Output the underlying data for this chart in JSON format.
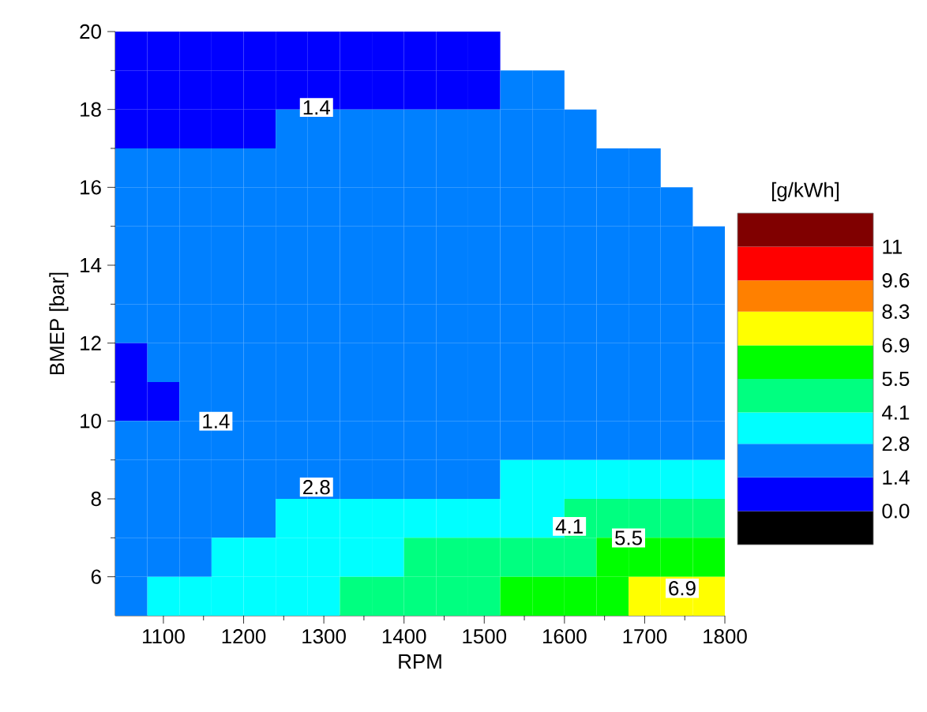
{
  "chart_data": {
    "type": "heatmap",
    "xlabel": "RPM",
    "ylabel": "BMEP [bar]",
    "clabel": "[g/kWh]",
    "x": [
      1060,
      1100,
      1140,
      1180,
      1220,
      1260,
      1300,
      1340,
      1380,
      1420,
      1460,
      1500,
      1540,
      1580,
      1620,
      1660,
      1700,
      1740,
      1780
    ],
    "y": [
      19.5,
      18.5,
      17.5,
      16.5,
      15.5,
      14.5,
      13.5,
      12.5,
      11.5,
      10.5,
      9.5,
      8.5,
      7.5,
      6.5,
      5.5
    ],
    "xlim": [
      1040,
      1800
    ],
    "ylim": [
      5,
      20
    ],
    "xticks": [
      1100,
      1200,
      1300,
      1400,
      1500,
      1600,
      1700,
      1800
    ],
    "yticks": [
      6,
      8,
      10,
      12,
      14,
      16,
      18,
      20
    ],
    "clim": [
      -1.4,
      12.4
    ],
    "cticks": [
      {
        "value": 0,
        "label": "0.0"
      },
      1.4,
      2.8,
      4.1,
      5.5,
      6.9,
      8.3,
      9.6,
      11
    ],
    "colors": [
      "#000000",
      "#0000ff",
      "#0080ff",
      "#00ffff",
      "#00ff80",
      "#00ff00",
      "#ffff00",
      "#ff8000",
      "#ff0000",
      "#800000"
    ],
    "cells": [
      [
        1.0,
        1.0,
        1.0,
        1.0,
        1.0,
        1.0,
        1.0,
        1.0,
        1.0,
        1.0,
        1.0,
        1.0,
        null,
        null,
        null,
        null,
        null,
        null,
        null
      ],
      [
        1.0,
        1.0,
        1.0,
        1.0,
        1.0,
        1.0,
        1.0,
        1.0,
        1.0,
        1.0,
        1.0,
        1.0,
        2.1,
        2.1,
        null,
        null,
        null,
        null,
        null
      ],
      [
        1.0,
        1.0,
        1.0,
        1.0,
        1.0,
        2.1,
        2.1,
        2.1,
        2.1,
        2.1,
        2.1,
        2.1,
        2.1,
        2.1,
        2.1,
        null,
        null,
        null,
        null
      ],
      [
        2.1,
        2.1,
        2.1,
        2.1,
        2.1,
        2.1,
        2.1,
        2.1,
        2.1,
        2.1,
        2.1,
        2.1,
        2.1,
        2.1,
        2.1,
        2.1,
        2.1,
        null,
        null
      ],
      [
        2.1,
        2.1,
        2.1,
        2.1,
        2.1,
        2.1,
        2.1,
        2.1,
        2.1,
        2.1,
        2.1,
        2.1,
        2.1,
        2.1,
        2.1,
        2.1,
        2.1,
        2.1,
        null
      ],
      [
        2.1,
        2.1,
        2.1,
        2.1,
        2.1,
        2.1,
        2.1,
        2.1,
        2.1,
        2.1,
        2.1,
        2.1,
        2.1,
        2.1,
        2.1,
        2.1,
        2.1,
        2.1,
        2.1
      ],
      [
        2.1,
        2.1,
        2.1,
        2.1,
        2.1,
        2.1,
        2.1,
        2.1,
        2.1,
        2.1,
        2.1,
        2.1,
        2.1,
        2.1,
        2.1,
        2.1,
        2.1,
        2.1,
        2.1
      ],
      [
        2.1,
        2.1,
        2.1,
        2.1,
        2.1,
        2.1,
        2.1,
        2.1,
        2.1,
        2.1,
        2.1,
        2.1,
        2.1,
        2.1,
        2.1,
        2.1,
        2.1,
        2.1,
        2.1
      ],
      [
        1.0,
        2.1,
        2.1,
        2.1,
        2.1,
        2.1,
        2.1,
        2.1,
        2.1,
        2.1,
        2.1,
        2.1,
        2.1,
        2.1,
        2.1,
        2.1,
        2.1,
        2.1,
        2.1
      ],
      [
        1.0,
        1.0,
        2.1,
        2.1,
        2.1,
        2.1,
        2.1,
        2.1,
        2.1,
        2.1,
        2.1,
        2.1,
        2.1,
        2.1,
        2.1,
        2.1,
        2.1,
        2.1,
        2.1
      ],
      [
        2.1,
        2.1,
        2.1,
        2.1,
        2.1,
        2.1,
        2.1,
        2.1,
        2.1,
        2.1,
        2.1,
        2.1,
        2.1,
        2.1,
        2.1,
        2.1,
        2.1,
        2.1,
        2.1
      ],
      [
        2.1,
        2.1,
        2.1,
        2.1,
        2.1,
        2.1,
        2.1,
        2.1,
        2.1,
        2.1,
        2.1,
        2.1,
        3.5,
        3.5,
        3.5,
        3.5,
        3.5,
        3.5,
        3.5
      ],
      [
        2.1,
        2.1,
        2.1,
        2.1,
        2.1,
        3.5,
        3.5,
        3.5,
        3.5,
        3.5,
        3.5,
        3.5,
        3.5,
        3.5,
        4.8,
        4.8,
        4.8,
        4.8,
        4.8
      ],
      [
        2.1,
        2.1,
        2.1,
        3.5,
        3.5,
        3.5,
        3.5,
        3.5,
        3.5,
        4.8,
        4.8,
        4.8,
        4.8,
        4.8,
        4.8,
        6.2,
        6.2,
        6.2,
        6.2
      ],
      [
        2.1,
        3.5,
        3.5,
        3.5,
        3.5,
        3.5,
        3.5,
        4.8,
        4.8,
        4.8,
        4.8,
        4.8,
        6.2,
        6.2,
        6.2,
        6.2,
        7.6,
        7.6,
        7.6
      ]
    ],
    "annotations": [
      "1.4",
      "1.4",
      "2.8",
      "4.1",
      "5.5",
      "6.9"
    ]
  }
}
